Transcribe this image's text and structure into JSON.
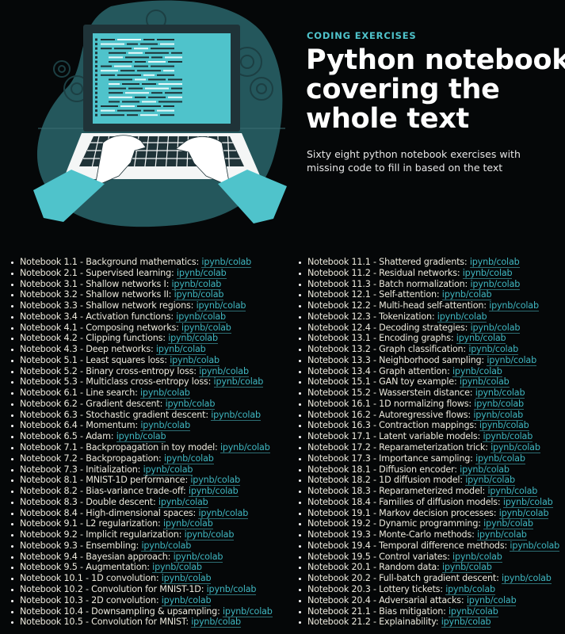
{
  "header": {
    "eyebrow": "CODING EXERCISES",
    "title_lines": [
      "Python notebooks",
      "covering the",
      "whole text"
    ],
    "subtitle_lines": [
      "Sixty eight python notebook exercises with",
      "missing code to fill in based on the text"
    ]
  },
  "colors": {
    "accent": "#4fc3cb",
    "background": "#050708",
    "blob": "#24575c",
    "screen": "#4fc3cb"
  },
  "illustration": {
    "icons": [
      "laptop-icon",
      "hands-typing-icon",
      "gear-icon"
    ]
  },
  "link_text": "ipynb/colab",
  "left_notebooks": [
    "Notebook 1.1 - Background mathematics:",
    "Notebook 2.1 - Supervised learning:",
    "Notebook 3.1 - Shallow networks I:",
    "Notebook 3.2 - Shallow networks II:",
    "Notebook 3.3 - Shallow network regions:",
    "Notebook 3.4 - Activation functions:",
    "Notebook 4.1 - Composing networks:",
    "Notebook 4.2 - Clipping functions:",
    "Notebook 4.3 - Deep networks:",
    "Notebook 5.1 - Least squares loss:",
    "Notebook 5.2 - Binary cross-entropy loss:",
    "Notebook 5.3 - Multiclass cross-entropy loss:",
    "Notebook 6.1 - Line search:",
    "Notebook 6.2 - Gradient descent:",
    "Notebook 6.3 - Stochastic gradient descent:",
    "Notebook 6.4 - Momentum:",
    "Notebook 6.5 - Adam:",
    "Notebook 7.1 - Backpropagation in toy model:",
    "Notebook 7.2 - Backpropagation:",
    "Notebook 7.3 - Initialization:",
    "Notebook 8.1 - MNIST-1D performance:",
    "Notebook 8.2 - Bias-variance trade-off:",
    "Notebook 8.3 - Double descent:",
    "Notebook 8.4 - High-dimensional spaces:",
    "Notebook 9.1 - L2 regularization:",
    "Notebook 9.2 - Implicit regularization:",
    "Notebook 9.3 - Ensembling:",
    "Notebook 9.4 - Bayesian approach:",
    "Notebook 9.5 - Augmentation:",
    "Notebook 10.1 - 1D convolution:",
    "Notebook 10.2 - Convolution for MNIST-1D:",
    "Notebook 10.3 - 2D convolution:",
    "Notebook 10.4 - Downsampling & upsampling:",
    "Notebook 10.5 - Convolution for MNIST:"
  ],
  "right_notebooks": [
    "Notebook 11.1 - Shattered gradients:",
    "Notebook 11.2 - Residual networks:",
    "Notebook 11.3 - Batch normalization:",
    "Notebook 12.1 - Self-attention:",
    "Notebook 12.2 - Multi-head self-attention:",
    "Notebook 12.3 - Tokenization:",
    "Notebook 12.4 - Decoding strategies:",
    "Notebook 13.1 - Encoding graphs:",
    "Notebook 13.2 - Graph classification:",
    "Notebook 13.3 - Neighborhood sampling:",
    "Notebook 13.4 - Graph attention:",
    "Notebook 15.1 - GAN toy example:",
    "Notebook 15.2 - Wasserstein distance:",
    "Notebook 16.1 - 1D normalizing flows:",
    "Notebook 16.2 - Autoregressive flows:",
    "Notebook 16.3 - Contraction mappings:",
    "Notebook 17.1 - Latent variable models:",
    "Notebook 17.2 - Reparameterization trick:",
    "Notebook 17.3 - Importance sampling:",
    "Notebook 18.1 - Diffusion encoder:",
    "Notebook 18.2 - 1D diffusion model:",
    "Notebook 18.3 - Reparameterized model:",
    "Notebook 18.4 - Families of diffusion models:",
    "Notebook 19.1 - Markov decision processes:",
    "Notebook 19.2 - Dynamic programming:",
    "Notebook 19.3 - Monte-Carlo methods:",
    "Notebook 19.4 - Temporal difference methods:",
    "Notebook 19.5 - Control variates:",
    "Notebook 20.1 - Random data:",
    "Notebook 20.2 - Full-batch gradient descent:",
    "Notebook 20.3 - Lottery tickets:",
    "Notebook 20.4 - Adversarial attacks:",
    "Notebook 21.1 - Bias mitigation:",
    "Notebook 21.2 - Explainability:"
  ]
}
